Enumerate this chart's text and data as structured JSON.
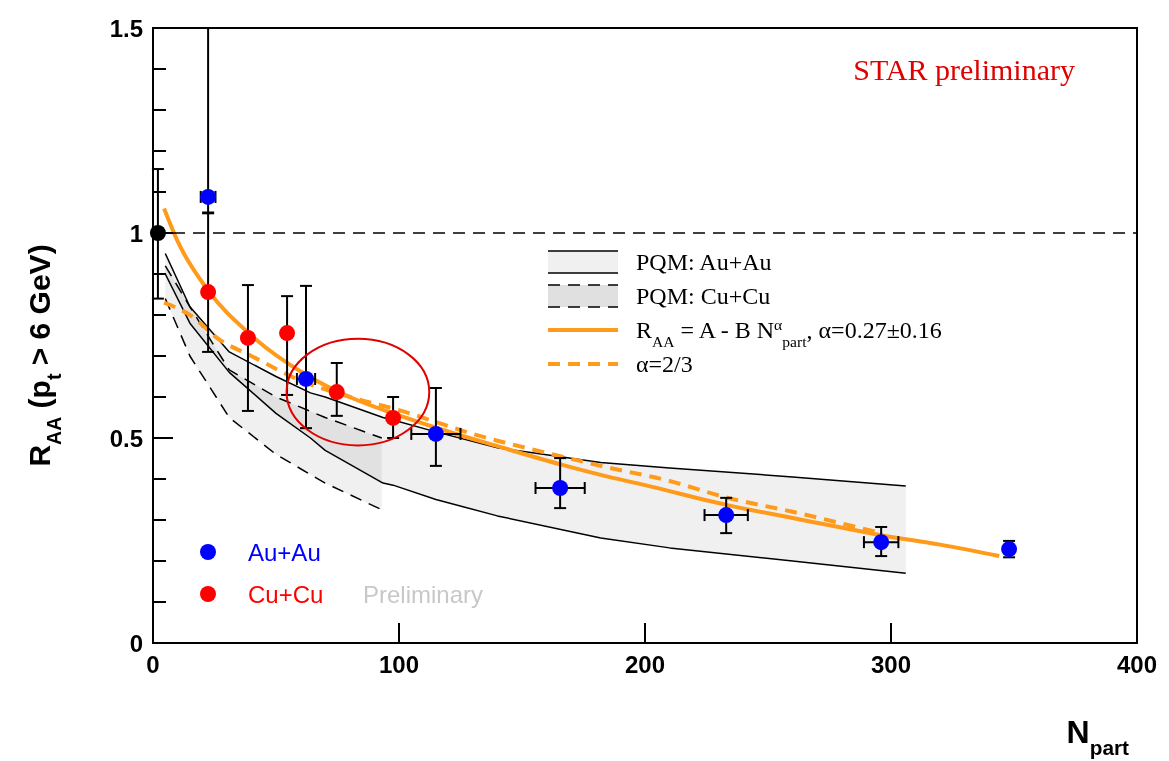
{
  "chart_data": {
    "type": "scatter",
    "xlabel": "N$_{part}$",
    "ylabel": "R$_{AA}$ (p$_{t}$ > 6 GeV)",
    "xlim": [
      0,
      400
    ],
    "xticks": [
      0,
      100,
      200,
      300,
      400
    ],
    "ylim": [
      0,
      1.5
    ],
    "yticks": [
      0,
      {
        "value": 0.1,
        "label": null
      },
      {
        "value": 0.2,
        "label": null
      },
      {
        "value": 0.3,
        "label": null
      },
      {
        "value": 0.4,
        "label": null
      },
      0.5,
      {
        "value": 0.6,
        "label": null
      },
      {
        "value": 0.7,
        "label": null
      },
      {
        "value": 0.8,
        "label": null
      },
      {
        "value": 0.9,
        "label": null
      },
      1,
      {
        "value": 1.1,
        "label": null
      },
      {
        "value": 1.2,
        "label": null
      },
      {
        "value": 1.3,
        "label": null
      },
      {
        "value": 1.4,
        "label": null
      },
      1.5
    ],
    "grid": false,
    "legend": "bottom left",
    "ref_lines": [
      {
        "axis": "y",
        "value": 1,
        "color": "#000000",
        "line_style": "dashed"
      }
    ],
    "annotations": [
      "STAR preliminary",
      "Preliminary"
    ],
    "series": [
      {
        "name": "PQM: Au+Au",
        "type": "line",
        "color": "#000000",
        "line_style": "solid",
        "x": [
          5,
          15,
          31,
          50,
          64,
          70,
          93.5,
          97.6,
          115,
          140,
          182,
          210,
          260,
          306
        ],
        "values": [
          0.95,
          0.82,
          0.71,
          0.65,
          0.61,
          0.6,
          0.55,
          0.544,
          0.515,
          0.476,
          0.44,
          0.427,
          0.405,
          0.383
        ]
      },
      {
        "type": "line",
        "color": "#000000",
        "line_style": "solid",
        "x": [
          5,
          15,
          31,
          50,
          64,
          70,
          93.5,
          97.6,
          115,
          140,
          182,
          210,
          260,
          306
        ],
        "values": [
          0.9,
          0.78,
          0.66,
          0.56,
          0.5,
          0.47,
          0.39,
          0.385,
          0.35,
          0.31,
          0.256,
          0.232,
          0.2,
          0.17
        ]
      },
      {
        "name": "PQM: Cu+Cu",
        "type": "line",
        "color": "#000000",
        "line_style": "dashed",
        "x": [
          5,
          15,
          31,
          50,
          70,
          93
        ],
        "values": [
          0.92,
          0.82,
          0.666,
          0.6,
          0.55,
          0.5
        ]
      },
      {
        "type": "line",
        "color": "#000000",
        "line_style": "dashed",
        "x": [
          5,
          15,
          31,
          50,
          70,
          93
        ],
        "values": [
          0.84,
          0.7,
          0.55,
          0.46,
          0.39,
          0.325
        ]
      },
      {
        "name": "R$_{AA}$ = A - B N$^{α}$$_{part}$, α=0.27±0.16",
        "type": "line",
        "color": "#ff9a1a",
        "line_style": "solid",
        "x": [
          4.5,
          10,
          22.4,
          40,
          62,
          80,
          100,
          115,
          140,
          166,
          182,
          200,
          233,
          260,
          296,
          320,
          344
        ],
        "values": [
          1.06,
          0.98,
          0.86,
          0.75,
          0.655,
          0.6,
          0.555,
          0.525,
          0.48,
          0.435,
          0.41,
          0.385,
          0.337,
          0.305,
          0.263,
          0.24,
          0.212
        ]
      },
      {
        "name": "α=2/3",
        "type": "line",
        "color": "#ff9a1a",
        "line_style": "dashed",
        "x": [
          4.5,
          15,
          27,
          40,
          60,
          80,
          100,
          130,
          166,
          182,
          210,
          233,
          260,
          296
        ],
        "values": [
          0.83,
          0.8,
          0.74,
          0.7,
          0.64,
          0.6,
          0.568,
          0.51,
          0.455,
          0.432,
          0.395,
          0.355,
          0.32,
          0.268
        ]
      },
      {
        "name": "Au+Au",
        "type": "scatter",
        "marker": "circle",
        "color": "#0000ff",
        "x": [
          22.4,
          62.2,
          115,
          165.5,
          233,
          296,
          348
        ],
        "values": [
          1.088,
          0.644,
          0.51,
          0.378,
          0.312,
          0.246,
          0.229
        ],
        "errors": [
          [
            1.048,
            1.5
          ],
          [
            0.524,
            0.871
          ],
          [
            0.432,
            0.622
          ],
          [
            0.329,
            0.451
          ],
          [
            0.268,
            0.354
          ],
          [
            0.212,
            0.283
          ],
          0.02
        ],
        "xerrors": [
          3,
          3.7,
          10,
          10,
          8.8,
          7,
          null
        ]
      },
      {
        "name": "Cu+Cu",
        "type": "scatter",
        "marker": "circle",
        "color": "#ff0000",
        "x": [
          22.4,
          38.6,
          54.5,
          74.7,
          97.6
        ],
        "values": [
          0.856,
          0.744,
          0.756,
          0.612,
          0.549
        ],
        "errors": [
          [
            0.71,
            1.05
          ],
          [
            0.566,
            0.873
          ],
          [
            0.605,
            0.846
          ],
          [
            0.554,
            0.683
          ],
          [
            0.5,
            0.6
          ]
        ]
      },
      {
        "type": "scatter",
        "marker": "circle",
        "color": "#000000",
        "x": [
          2
        ],
        "values": [
          1.0
        ],
        "errors": [
          [
            0.84,
            1.156
          ]
        ]
      }
    ]
  }
}
